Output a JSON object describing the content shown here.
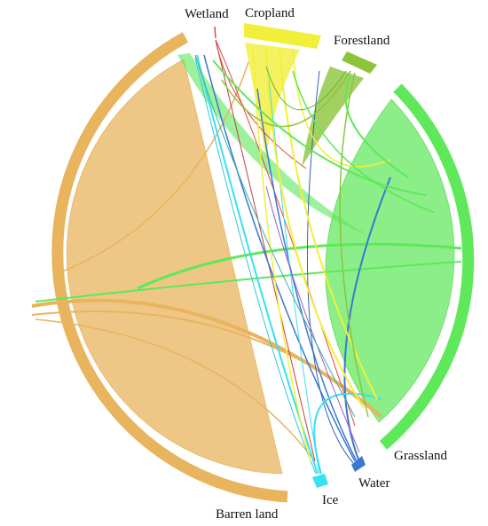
{
  "diagram": {
    "type": "chord",
    "categories": [
      {
        "id": "wetland",
        "label": "Wetland",
        "color": "#e8483a"
      },
      {
        "id": "cropland",
        "label": "Cropland",
        "color": "#f2ef3a"
      },
      {
        "id": "forestland",
        "label": "Forestland",
        "color": "#8cc43c"
      },
      {
        "id": "grassland",
        "label": "Grassland",
        "color": "#5ee85a"
      },
      {
        "id": "water",
        "label": "Water",
        "color": "#3a78d0"
      },
      {
        "id": "ice",
        "label": "Ice",
        "color": "#38e0f0"
      },
      {
        "id": "barren",
        "label": "Barren land",
        "color": "#e8b45e"
      }
    ]
  }
}
